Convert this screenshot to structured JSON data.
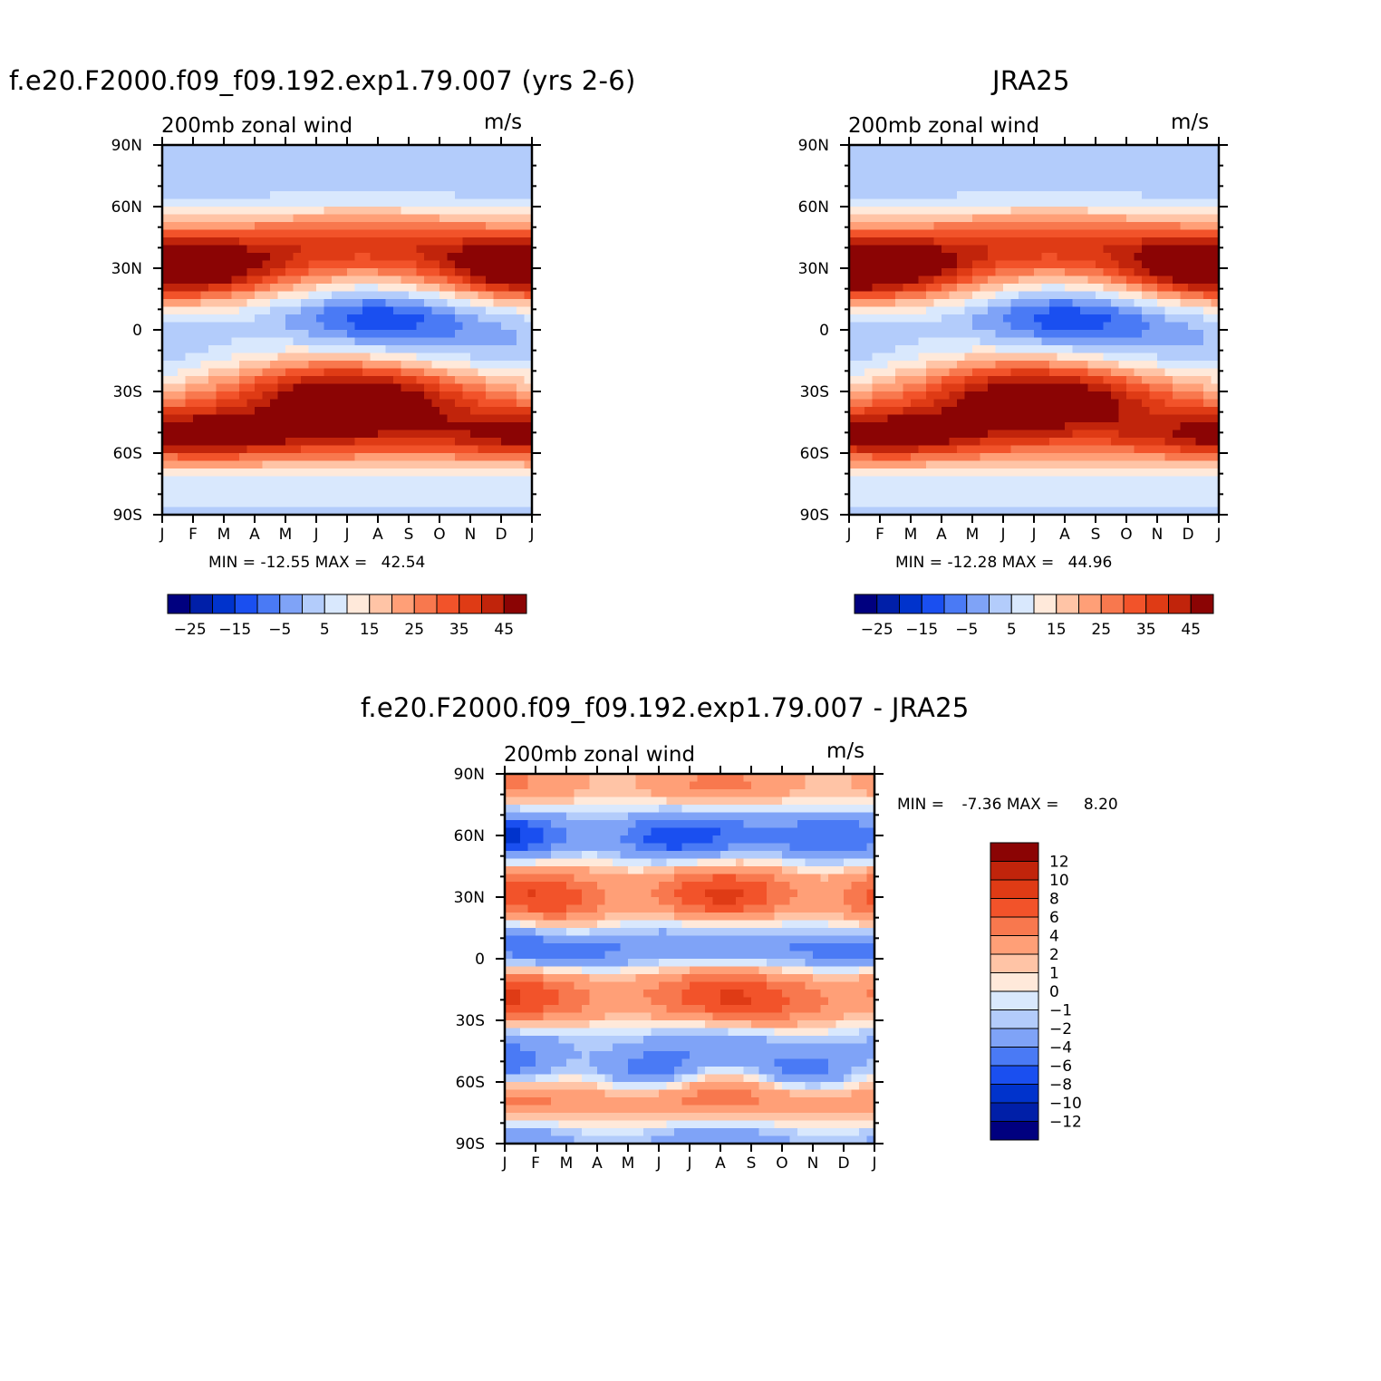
{
  "chart_data": [
    {
      "type": "heatmap",
      "name": "model",
      "title": "f.e20.F2000.f09_f09.192.exp1.79.007 (yrs 2-6)",
      "left_string": "200mb  zonal  wind",
      "right_string": "m/s",
      "stats": {
        "min_label": "MIN =",
        "min": "-12.55",
        "max_label": "MAX =",
        "max": "42.54"
      },
      "x_ticks": [
        "J",
        "F",
        "M",
        "A",
        "M",
        "J",
        "J",
        "A",
        "S",
        "O",
        "N",
        "D",
        "J"
      ],
      "y_ticks": [
        "90N",
        "60N",
        "30N",
        "0",
        "30S",
        "60S",
        "90S"
      ],
      "xlim": [
        0,
        12
      ],
      "ylim": [
        -90,
        90
      ],
      "colorbar_orientation": "horizontal",
      "colorbar_labels": [
        "-25",
        "-15",
        "-5",
        "5",
        "15",
        "25",
        "35",
        "45"
      ],
      "jets": [
        {
          "lat": 30,
          "month": 0.4,
          "speed": 42
        },
        {
          "lat": 30,
          "month": 11.5,
          "speed": 41
        },
        {
          "lat": -29,
          "month": 6.3,
          "speed": 40
        },
        {
          "lat": -52,
          "month": 1.2,
          "speed": 38
        },
        {
          "lat": 7,
          "month": 7,
          "speed": -12.5
        }
      ]
    },
    {
      "type": "heatmap",
      "name": "observation",
      "title": "JRA25",
      "left_string": "200mb  zonal  wind",
      "right_string": "m/s",
      "stats": {
        "min_label": "MIN =",
        "min": "-12.28",
        "max_label": "MAX =",
        "max": "44.96"
      },
      "x_ticks": [
        "J",
        "F",
        "M",
        "A",
        "M",
        "J",
        "J",
        "A",
        "S",
        "O",
        "N",
        "D",
        "J"
      ],
      "y_ticks": [
        "90N",
        "60N",
        "30N",
        "0",
        "30S",
        "60S",
        "90S"
      ],
      "xlim": [
        0,
        12
      ],
      "ylim": [
        -90,
        90
      ],
      "colorbar_orientation": "horizontal",
      "colorbar_labels": [
        "-25",
        "-15",
        "-5",
        "5",
        "15",
        "25",
        "35",
        "45"
      ],
      "jets": [
        {
          "lat": 30,
          "month": 0.5,
          "speed": 44
        },
        {
          "lat": 31,
          "month": 11.6,
          "speed": 42
        },
        {
          "lat": -29,
          "month": 6.2,
          "speed": 41
        },
        {
          "lat": -48,
          "month": 0.8,
          "speed": 36
        },
        {
          "lat": 6,
          "month": 7,
          "speed": -12.3
        }
      ]
    },
    {
      "type": "heatmap",
      "name": "difference",
      "title": "f.e20.F2000.f09_f09.192.exp1.79.007 - JRA25",
      "left_string": "200mb  zonal  wind",
      "right_string": "m/s",
      "stats": {
        "min_label": "MIN =",
        "min": "-7.36",
        "max_label": "MAX =",
        "max": "8.20"
      },
      "x_ticks": [
        "J",
        "F",
        "M",
        "A",
        "M",
        "J",
        "J",
        "A",
        "S",
        "O",
        "N",
        "D",
        "J"
      ],
      "y_ticks": [
        "90N",
        "60N",
        "30N",
        "0",
        "30S",
        "60S",
        "90S"
      ],
      "xlim": [
        0,
        12
      ],
      "ylim": [
        -90,
        90
      ],
      "colorbar_orientation": "vertical",
      "colorbar_labels": [
        "12",
        "10",
        "8",
        "6",
        "4",
        "2",
        "1",
        "0",
        "-1",
        "-2",
        "-4",
        "-6",
        "-8",
        "-10",
        "-12"
      ]
    }
  ],
  "palette": [
    "#00007f",
    "#001fa8",
    "#0033cc",
    "#1a4ff0",
    "#4a7af5",
    "#7fa3f7",
    "#b3ccfb",
    "#d9e8fd",
    "#ffe9da",
    "#ffc4a6",
    "#ff9f77",
    "#f8784e",
    "#f2532a",
    "#df3b15",
    "#c1240b",
    "#8b0404"
  ],
  "diff_palette": [
    "#8b0404",
    "#c1240b",
    "#df3b15",
    "#f2532a",
    "#f8784e",
    "#ff9f77",
    "#ffc4a6",
    "#ffe9da",
    "#d9e8fd",
    "#b3ccfb",
    "#7fa3f7",
    "#4a7af5",
    "#1a4ff0",
    "#0033cc",
    "#001fa8",
    "#00007f"
  ]
}
